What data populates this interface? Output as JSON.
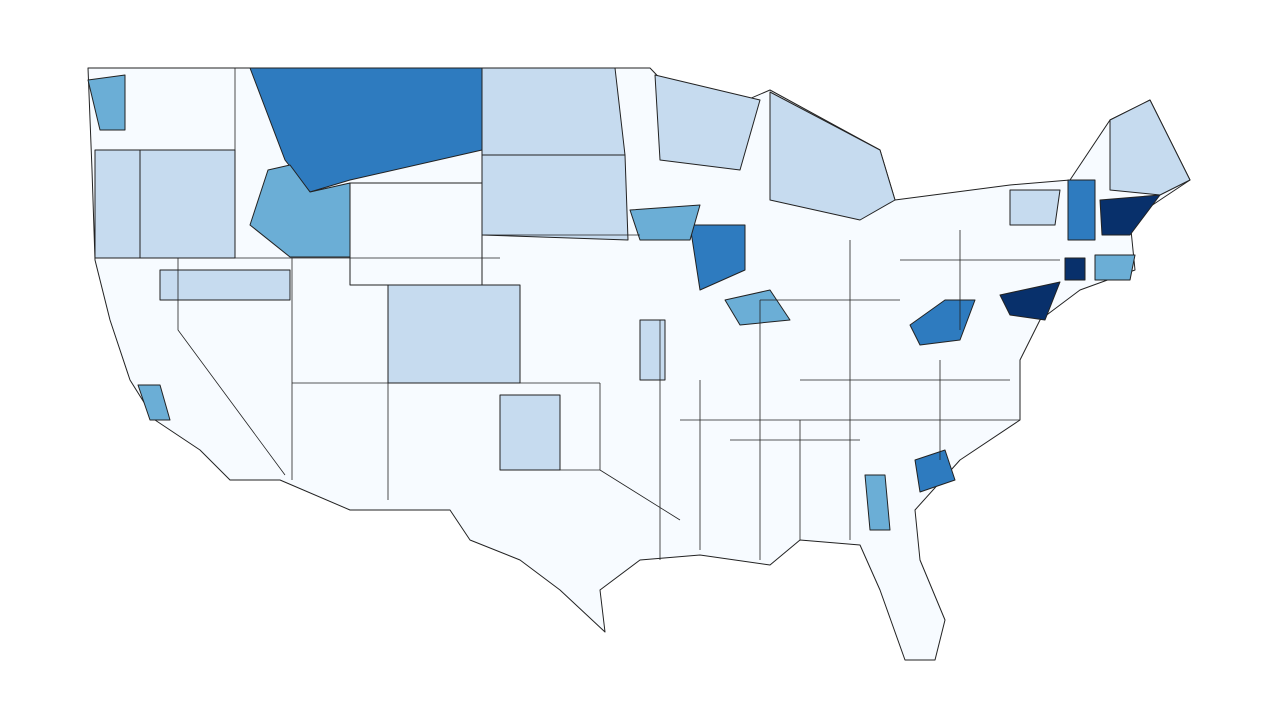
{
  "map": {
    "type": "choropleth",
    "colors": [
      "#f7fbff",
      "#c6dbef",
      "#6baed6",
      "#2e7bbf",
      "#08306b"
    ]
  }
}
